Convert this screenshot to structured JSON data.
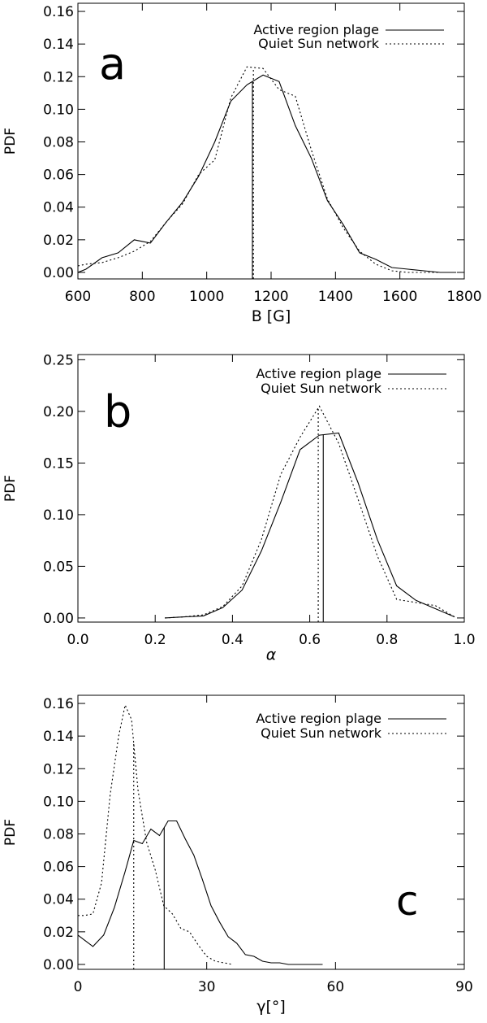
{
  "chart_data": [
    {
      "type": "line",
      "panel_label": "a",
      "xlabel": "B [G]",
      "ylabel": "PDF",
      "xlim": [
        600,
        1800
      ],
      "ylim": [
        -0.004,
        0.165
      ],
      "xticks": [
        600,
        800,
        1000,
        1200,
        1400,
        1600,
        1800
      ],
      "xtick_labels": [
        "600",
        "800",
        "1000",
        "1200",
        "1400",
        "1600",
        "1800"
      ],
      "yticks": [
        0.0,
        0.02,
        0.04,
        0.06,
        0.08,
        0.1,
        0.12,
        0.14,
        0.16
      ],
      "ytick_labels": [
        "0.00",
        "0.02",
        "0.04",
        "0.06",
        "0.08",
        "0.10",
        "0.12",
        "0.14",
        "0.16"
      ],
      "legend_position": "top-right",
      "series": [
        {
          "name": "Active region plage",
          "style": "solid",
          "x": [
            600,
            625,
            675,
            725,
            775,
            825,
            875,
            925,
            975,
            1025,
            1075,
            1125,
            1175,
            1225,
            1275,
            1325,
            1375,
            1425,
            1475,
            1525,
            1575,
            1625,
            1675,
            1725,
            1775
          ],
          "y": [
            0.0,
            0.002,
            0.009,
            0.012,
            0.02,
            0.018,
            0.031,
            0.043,
            0.059,
            0.08,
            0.105,
            0.115,
            0.121,
            0.117,
            0.09,
            0.07,
            0.044,
            0.029,
            0.012,
            0.008,
            0.003,
            0.002,
            0.001,
            0.0,
            0.0
          ],
          "mean": 1142
        },
        {
          "name": "Quiet Sun network",
          "style": "dotted",
          "x": [
            600,
            625,
            675,
            725,
            775,
            825,
            875,
            925,
            975,
            1025,
            1075,
            1125,
            1175,
            1225,
            1275,
            1325,
            1375,
            1425,
            1475,
            1525,
            1575,
            1625,
            1675,
            1725,
            1775
          ],
          "y": [
            0.004,
            0.005,
            0.006,
            0.009,
            0.013,
            0.019,
            0.031,
            0.042,
            0.06,
            0.069,
            0.107,
            0.126,
            0.125,
            0.112,
            0.108,
            0.075,
            0.045,
            0.027,
            0.013,
            0.005,
            0.001,
            0.0,
            0.0,
            0.0,
            0.0
          ],
          "mean": 1145
        }
      ]
    },
    {
      "type": "line",
      "panel_label": "b",
      "xlabel": "α",
      "ylabel": "PDF",
      "xlim": [
        0.0,
        1.0
      ],
      "ylim": [
        -0.004,
        0.255
      ],
      "xticks": [
        0.0,
        0.2,
        0.4,
        0.6,
        0.8,
        1.0
      ],
      "xtick_labels": [
        "0.0",
        "0.2",
        "0.4",
        "0.6",
        "0.8",
        "1.0"
      ],
      "yticks": [
        0.0,
        0.05,
        0.1,
        0.15,
        0.2,
        0.25
      ],
      "ytick_labels": [
        "0.00",
        "0.05",
        "0.10",
        "0.15",
        "0.20",
        "0.25"
      ],
      "legend_position": "top-right",
      "series": [
        {
          "name": "Active region plage",
          "style": "solid",
          "x": [
            0.225,
            0.275,
            0.325,
            0.375,
            0.425,
            0.475,
            0.525,
            0.575,
            0.625,
            0.675,
            0.725,
            0.775,
            0.825,
            0.875,
            0.925,
            0.975
          ],
          "y": [
            0.0,
            0.001,
            0.002,
            0.01,
            0.027,
            0.065,
            0.112,
            0.163,
            0.177,
            0.179,
            0.131,
            0.076,
            0.031,
            0.017,
            0.009,
            0.001
          ],
          "mean": 0.635
        },
        {
          "name": "Quiet Sun network",
          "style": "dotted",
          "x": [
            0.225,
            0.275,
            0.325,
            0.375,
            0.425,
            0.475,
            0.525,
            0.575,
            0.625,
            0.675,
            0.725,
            0.775,
            0.825,
            0.875,
            0.925,
            0.975
          ],
          "y": [
            0.0,
            0.001,
            0.003,
            0.011,
            0.031,
            0.076,
            0.139,
            0.175,
            0.205,
            0.169,
            0.115,
            0.06,
            0.018,
            0.015,
            0.012,
            0.001
          ],
          "mean": 0.622
        }
      ]
    },
    {
      "type": "line",
      "panel_label": "c",
      "xlabel": "γ[°]",
      "ylabel": "PDF",
      "xlim": [
        0,
        90
      ],
      "ylim": [
        -0.003,
        0.165
      ],
      "xticks": [
        0,
        30,
        60,
        90
      ],
      "xtick_labels": [
        "0",
        "30",
        "60",
        "90"
      ],
      "yticks": [
        0.0,
        0.02,
        0.04,
        0.06,
        0.08,
        0.1,
        0.12,
        0.14,
        0.16
      ],
      "ytick_labels": [
        "0.00",
        "0.02",
        "0.04",
        "0.06",
        "0.08",
        "0.10",
        "0.12",
        "0.14",
        "0.16"
      ],
      "legend_position": "top-right",
      "series": [
        {
          "name": "Active region plage",
          "style": "solid",
          "x": [
            0,
            1.5,
            3.5,
            6,
            8.5,
            11,
            13,
            15,
            17,
            19,
            21,
            23,
            25,
            27,
            29,
            31,
            33,
            35,
            37,
            39,
            41,
            43,
            45,
            47,
            49,
            51,
            53,
            55,
            57
          ],
          "y": [
            0.018,
            0.015,
            0.011,
            0.018,
            0.035,
            0.057,
            0.076,
            0.074,
            0.083,
            0.079,
            0.088,
            0.088,
            0.077,
            0.067,
            0.052,
            0.036,
            0.026,
            0.017,
            0.013,
            0.006,
            0.005,
            0.002,
            0.001,
            0.001,
            0.0,
            0.0,
            0.0,
            0.0,
            0.0
          ],
          "mean": 20.1
        },
        {
          "name": "Quiet Sun network",
          "style": "dotted",
          "x": [
            0,
            1.5,
            3.5,
            5.5,
            7.5,
            9.5,
            11,
            12.5,
            14,
            16,
            18,
            20,
            22,
            24,
            26,
            28,
            30,
            32,
            34,
            36
          ],
          "y": [
            0.03,
            0.03,
            0.031,
            0.05,
            0.104,
            0.14,
            0.159,
            0.15,
            0.107,
            0.075,
            0.058,
            0.036,
            0.031,
            0.022,
            0.02,
            0.012,
            0.005,
            0.002,
            0.001,
            0.0
          ],
          "mean": 13.0
        }
      ]
    }
  ]
}
